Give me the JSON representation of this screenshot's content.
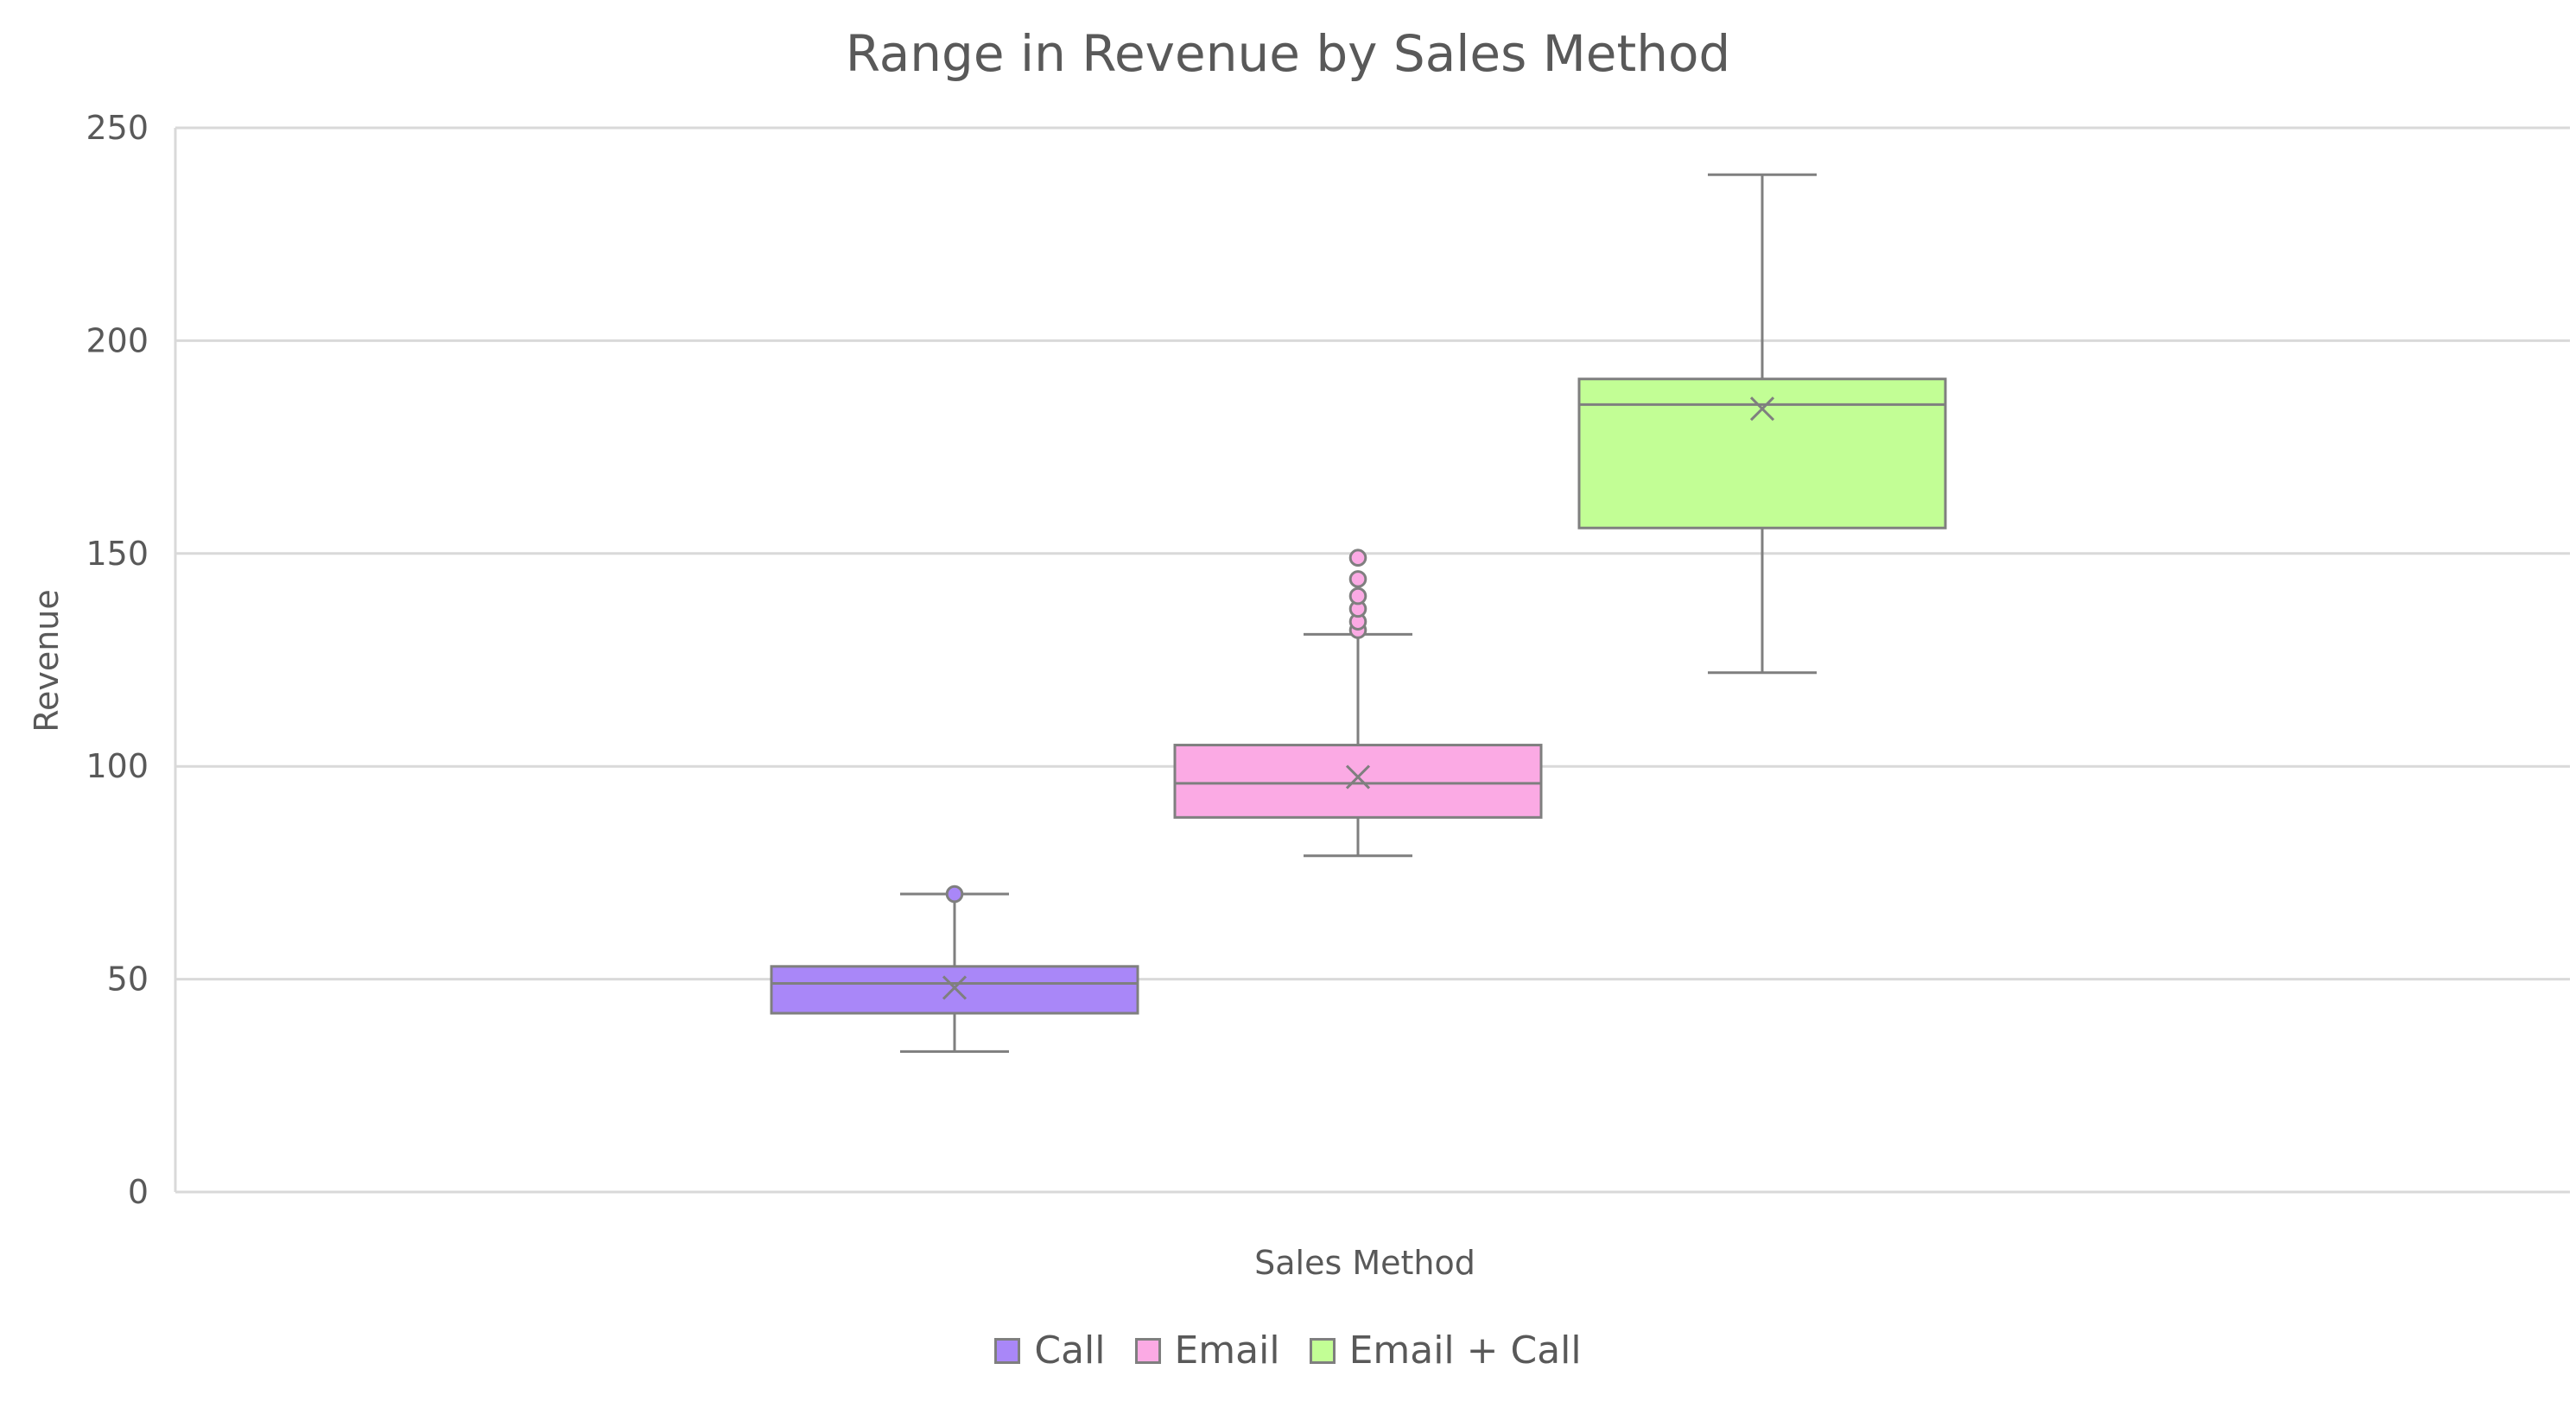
{
  "chart_data": {
    "type": "box",
    "title": "Range in Revenue by Sales Method",
    "xlabel": "Sales Method",
    "ylabel": "Revenue",
    "ylim": [
      0,
      250
    ],
    "yticks": [
      0,
      50,
      100,
      150,
      200,
      250
    ],
    "grid": true,
    "legend_position": "bottom",
    "series": [
      {
        "name": "Call",
        "color": "#a987f8",
        "min": 33,
        "q1": 42,
        "median": 49,
        "q3": 53,
        "max": 70,
        "mean": 48,
        "outliers": [
          70
        ]
      },
      {
        "name": "Email",
        "color": "#fbaae4",
        "min": 79,
        "q1": 88,
        "median": 96,
        "q3": 105,
        "max": 131,
        "mean": 97.5,
        "outliers": [
          132,
          134,
          137,
          140,
          144,
          149
        ]
      },
      {
        "name": "Email + Call",
        "color": "#c2fe95",
        "min": 122,
        "q1": 156,
        "median": 185,
        "q3": 191,
        "max": 239,
        "mean": 184,
        "outliers": []
      }
    ]
  }
}
